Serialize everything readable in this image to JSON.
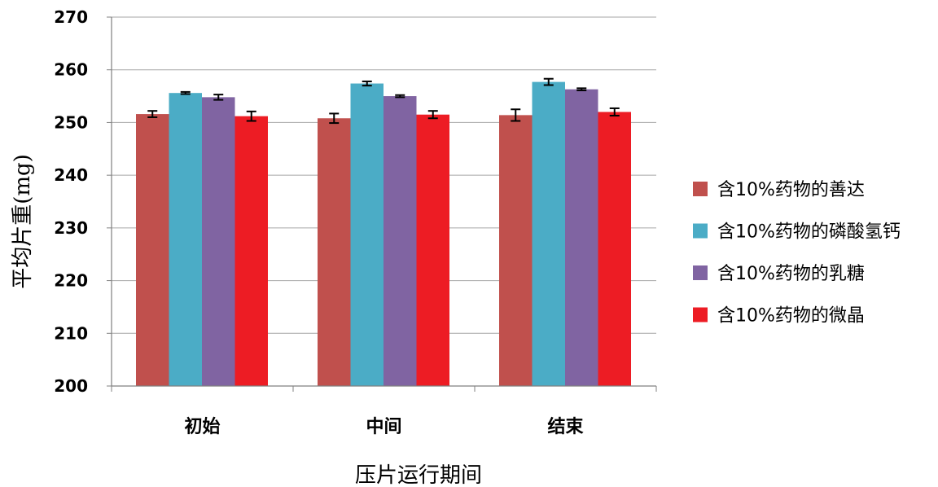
{
  "chart_data": {
    "type": "bar",
    "xlabel": "压片运行期间",
    "ylabel": "平均片重(mg)",
    "ylim": [
      200,
      270
    ],
    "ytick_step": 10,
    "grid": true,
    "legend_position": "right",
    "categories": [
      "初始",
      "中间",
      "结束"
    ],
    "series": [
      {
        "name": "含10%药物的善达",
        "color": "#C0504D",
        "values": [
          251.6,
          250.8,
          251.4
        ],
        "errors": [
          0.6,
          0.9,
          1.1
        ]
      },
      {
        "name": "含10%药物的磷酸氢钙",
        "color": "#4BACC6",
        "values": [
          255.6,
          257.4,
          257.7
        ],
        "errors": [
          0.2,
          0.4,
          0.6
        ]
      },
      {
        "name": "含10%药物的乳糖",
        "color": "#8064A2",
        "values": [
          254.8,
          255.0,
          256.3
        ],
        "errors": [
          0.5,
          0.2,
          0.2
        ]
      },
      {
        "name": "含10%药物的微晶",
        "color": "#ED1C24",
        "values": [
          251.2,
          251.5,
          252.0
        ],
        "errors": [
          0.9,
          0.7,
          0.7
        ]
      }
    ]
  },
  "style": {
    "grid_color": "#A6A6A6",
    "axis_color": "#808080",
    "errorbar_color": "#000000"
  }
}
